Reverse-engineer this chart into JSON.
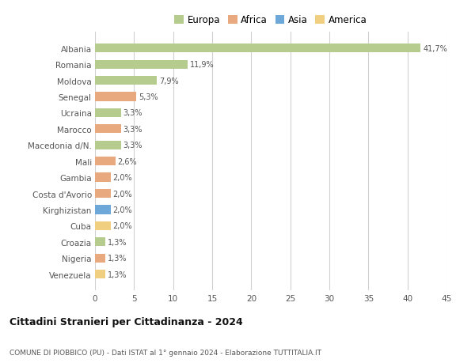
{
  "countries": [
    "Albania",
    "Romania",
    "Moldova",
    "Senegal",
    "Ucraina",
    "Marocco",
    "Macedonia d/N.",
    "Mali",
    "Gambia",
    "Costa d'Avorio",
    "Kirghizistan",
    "Cuba",
    "Croazia",
    "Nigeria",
    "Venezuela"
  ],
  "values": [
    41.7,
    11.9,
    7.9,
    5.3,
    3.3,
    3.3,
    3.3,
    2.6,
    2.0,
    2.0,
    2.0,
    2.0,
    1.3,
    1.3,
    1.3
  ],
  "labels": [
    "41,7%",
    "11,9%",
    "7,9%",
    "5,3%",
    "3,3%",
    "3,3%",
    "3,3%",
    "2,6%",
    "2,0%",
    "2,0%",
    "2,0%",
    "2,0%",
    "1,3%",
    "1,3%",
    "1,3%"
  ],
  "continents": [
    "Europa",
    "Europa",
    "Europa",
    "Africa",
    "Europa",
    "Africa",
    "Europa",
    "Africa",
    "Africa",
    "Africa",
    "Asia",
    "America",
    "Europa",
    "Africa",
    "America"
  ],
  "colors": {
    "Europa": "#b5cc8e",
    "Africa": "#e8a97e",
    "Asia": "#6ea8d8",
    "America": "#f0d080"
  },
  "xlim": [
    0,
    45
  ],
  "xticks": [
    0,
    5,
    10,
    15,
    20,
    25,
    30,
    35,
    40,
    45
  ],
  "title": "Cittadini Stranieri per Cittadinanza - 2024",
  "subtitle": "COMUNE DI PIOBBICO (PU) - Dati ISTAT al 1° gennaio 2024 - Elaborazione TUTTITALIA.IT",
  "background_color": "#ffffff",
  "grid_color": "#d0d0d0",
  "bar_height": 0.55,
  "legend_order": [
    "Europa",
    "Africa",
    "Asia",
    "America"
  ]
}
